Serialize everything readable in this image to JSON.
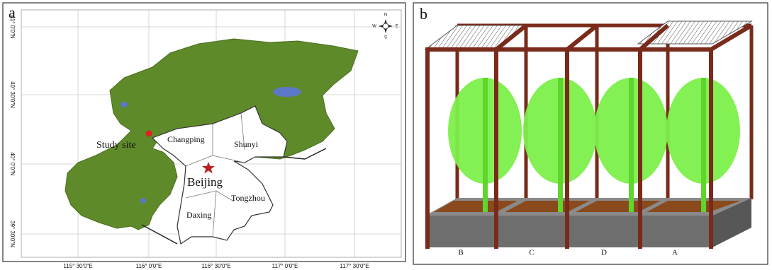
{
  "panel_a": {
    "label": "a",
    "compass": {
      "n": "N",
      "s": "S",
      "e": "E",
      "w": "W"
    },
    "places": [
      {
        "label": "Study site"
      },
      {
        "label": "Changping"
      },
      {
        "label": "Shunyi"
      },
      {
        "label": "Beijing"
      },
      {
        "label": "Tongzhou"
      },
      {
        "label": "Daxing"
      }
    ],
    "x_ticks": [
      "115° 30′0″E",
      "116° 0′0″E",
      "116° 30′0″E",
      "117° 0′0″E",
      "117° 30′0″E"
    ],
    "y_ticks": [
      "41° 0′0″N",
      "40° 30′0″N",
      "40° 0′0″N",
      "39° 30′0″N"
    ]
  },
  "panel_b": {
    "label": "b",
    "plots": [
      "B",
      "C",
      "D",
      "A"
    ]
  }
}
